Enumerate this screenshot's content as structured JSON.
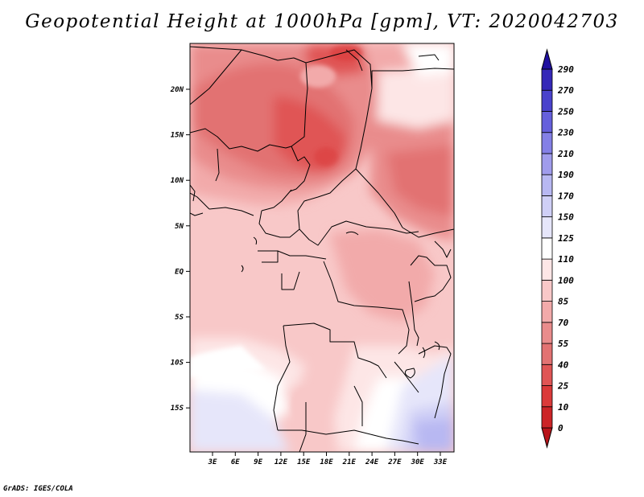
{
  "title": "Geopotential Height at 1000hPa [gpm], VT: 2020042703",
  "credit": "GrADS: IGES/COLA",
  "map": {
    "x_ticks": [
      "3E",
      "6E",
      "9E",
      "12E",
      "15E",
      "18E",
      "21E",
      "24E",
      "27E",
      "30E",
      "33E"
    ],
    "y_ticks": [
      "20N",
      "15N",
      "10N",
      "5N",
      "EQ",
      "5S",
      "10S",
      "15S"
    ]
  },
  "colorbar": {
    "labels": [
      "0",
      "10",
      "25",
      "40",
      "55",
      "70",
      "85",
      "100",
      "110",
      "125",
      "150",
      "170",
      "190",
      "210",
      "230",
      "250",
      "270",
      "290"
    ],
    "colors": [
      "#b8141a",
      "#cc2427",
      "#db3a3a",
      "#e05555",
      "#e27272",
      "#e98c8c",
      "#f2aaaa",
      "#f8c8c8",
      "#fde6e6",
      "#ffffff",
      "#e6e6fa",
      "#cfcff6",
      "#b8b8f2",
      "#a09cec",
      "#8480e6",
      "#6660dc",
      "#4a42cc",
      "#3528b8",
      "#2010a0"
    ]
  },
  "chart_data": {
    "type": "heatmap",
    "title": "Geopotential Height at 1000hPa [gpm], VT: 2020042703",
    "variable": "Geopotential Height at 1000hPa",
    "units": "gpm",
    "valid_time": "2020042703",
    "x_range": [
      "0E",
      "35E"
    ],
    "y_range": [
      "20S",
      "25N"
    ],
    "levels": [
      0,
      10,
      25,
      40,
      55,
      70,
      85,
      100,
      110,
      125,
      150,
      170,
      190,
      210,
      230,
      250,
      270,
      290
    ]
  }
}
